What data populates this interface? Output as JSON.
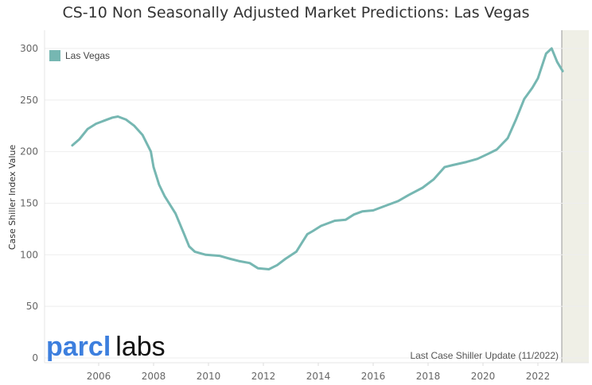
{
  "chart_data": {
    "type": "line",
    "title": "CS-10 Non Seasonally Adjusted Market Predictions: Las Vegas",
    "xlabel": "",
    "ylabel": "Case Shiller Index Value",
    "xlim": [
      2004.0,
      2023.8
    ],
    "ylim": [
      0,
      310
    ],
    "xticks": [
      "2006",
      "2008",
      "2010",
      "2012",
      "2014",
      "2016",
      "2018",
      "2020",
      "2022"
    ],
    "yticks": [
      "0",
      "50",
      "100",
      "150",
      "200",
      "250",
      "300"
    ],
    "grid": true,
    "legend": {
      "position": "top-left",
      "entries": [
        "Las Vegas"
      ]
    },
    "shaded_region": [
      2022.87,
      2023.8
    ],
    "annotation": "Last Case Shiller Update (11/2022)",
    "series": [
      {
        "name": "Las Vegas",
        "color": "#76b7b2",
        "x": [
          2005.04,
          2005.3,
          2005.6,
          2005.9,
          2006.2,
          2006.5,
          2006.7,
          2007.0,
          2007.3,
          2007.6,
          2007.9,
          2008.0,
          2008.2,
          2008.4,
          2008.8,
          2009.1,
          2009.3,
          2009.5,
          2009.9,
          2010.4,
          2010.8,
          2011.1,
          2011.5,
          2011.8,
          2012.2,
          2012.5,
          2012.8,
          2013.2,
          2013.6,
          2013.8,
          2014.1,
          2014.6,
          2015.0,
          2015.3,
          2015.6,
          2016.0,
          2016.5,
          2016.9,
          2017.3,
          2017.8,
          2018.2,
          2018.6,
          2018.9,
          2019.4,
          2019.8,
          2020.2,
          2020.5,
          2020.9,
          2021.2,
          2021.5,
          2021.8,
          2022.0,
          2022.3,
          2022.5,
          2022.7,
          2022.9
        ],
        "y": [
          206,
          212,
          222,
          227,
          230,
          233,
          234,
          231,
          225,
          216,
          200,
          185,
          168,
          157,
          140,
          121,
          108,
          103,
          100,
          99,
          96,
          94,
          92,
          87,
          86,
          90,
          96,
          103,
          120,
          123,
          128,
          133,
          134,
          139,
          142,
          143,
          148,
          152,
          158,
          165,
          173,
          185,
          187,
          190,
          193,
          198,
          202,
          213,
          231,
          251,
          262,
          271,
          295,
          300,
          287,
          278
        ]
      }
    ]
  },
  "branding": {
    "logo_mark": "parcl",
    "logo_text": "labs"
  }
}
